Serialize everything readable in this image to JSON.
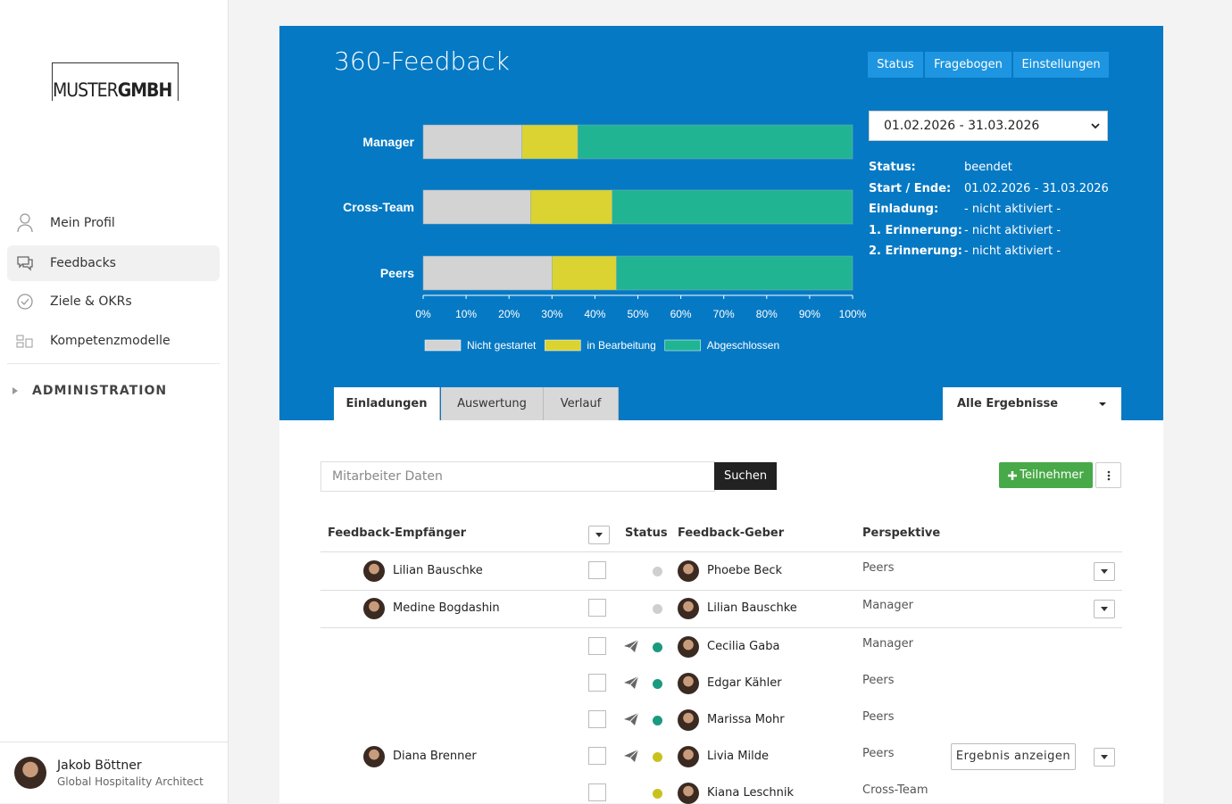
{
  "sidebar": {
    "logo": {
      "part1": "MUSTER",
      "part2": "GMBH"
    },
    "nav": [
      "Mein Profil",
      "Feedbacks",
      "Ziele & OKRs",
      "Kompetenzmodelle"
    ],
    "section": "ADMINISTRATION",
    "user": {
      "name": "Jakob Böttner",
      "role": "Global Hospitality Architect"
    }
  },
  "header": {
    "title": "360-Feedback",
    "buttons": [
      "Status",
      "Fragebogen",
      "Einstellungen"
    ],
    "period": "01.02.2026 - 31.03.2026",
    "info": [
      {
        "label": "Status:",
        "value": "beendet"
      },
      {
        "label": "Start / Ende:",
        "value": "01.02.2026 - 31.03.2026"
      },
      {
        "label": "Einladung:",
        "value": "- nicht aktiviert -"
      },
      {
        "label": "1. Erinnerung:",
        "value": "- nicht aktiviert -"
      },
      {
        "label": "2. Erinnerung:",
        "value": "- nicht aktiviert -"
      }
    ]
  },
  "chart_data": {
    "type": "stacked-bar-horizontal",
    "categories": [
      "Manager",
      "Cross-Team",
      "Peers"
    ],
    "series": [
      {
        "name": "Nicht gestartet",
        "color": "#d3d3d3",
        "values": [
          23,
          25,
          30
        ]
      },
      {
        "name": "in Bearbeitung",
        "color": "#dbd331",
        "values": [
          13,
          19,
          15
        ]
      },
      {
        "name": "Abgeschlossen",
        "color": "#20b493",
        "values": [
          64,
          56,
          55
        ]
      }
    ],
    "xlim": [
      0,
      100
    ],
    "xticks": [
      {
        "value": 0,
        "label": "0%"
      },
      {
        "value": 10,
        "label": "10%"
      },
      {
        "value": 20,
        "label": "20%"
      },
      {
        "value": 30,
        "label": "30%"
      },
      {
        "value": 40,
        "label": "40%"
      },
      {
        "value": 50,
        "label": "50%"
      },
      {
        "value": 60,
        "label": "60%"
      },
      {
        "value": 70,
        "label": "70%"
      },
      {
        "value": 80,
        "label": "80%"
      },
      {
        "value": 90,
        "label": "90%"
      },
      {
        "value": 100,
        "label": "100%"
      }
    ],
    "legend": "bottom"
  },
  "tabs": [
    "Einladungen",
    "Auswertung",
    "Verlauf"
  ],
  "filter": "Alle Ergebnisse",
  "search": {
    "placeholder": "Mitarbeiter Daten",
    "button": "Suchen"
  },
  "add_button": "Teilnehmer",
  "table": {
    "columns": [
      "Feedback-Empfänger",
      "Status",
      "Feedback-Geber",
      "Perspektive"
    ],
    "groups": [
      {
        "recipient": "Lilian Bauschke",
        "givers": [
          {
            "name": "Phoebe Beck",
            "perspective": "Peers",
            "status_color": "#cfcfcf",
            "sent": false
          }
        ]
      },
      {
        "recipient": "Medine Bogdashin",
        "givers": [
          {
            "name": "Lilian Bauschke",
            "perspective": "Manager",
            "status_color": "#cfcfcf",
            "sent": false
          }
        ]
      },
      {
        "recipient": "Diana Brenner",
        "result_button": "Ergebnis anzeigen",
        "givers": [
          {
            "name": "Cecilia Gaba",
            "perspective": "Manager",
            "status_color": "#1a9a7e",
            "sent": true
          },
          {
            "name": "Edgar Kähler",
            "perspective": "Peers",
            "status_color": "#1a9a7e",
            "sent": true
          },
          {
            "name": "Marissa Mohr",
            "perspective": "Peers",
            "status_color": "#1a9a7e",
            "sent": true
          },
          {
            "name": "Livia Milde",
            "perspective": "Peers",
            "status_color": "#c9c21e",
            "sent": true
          },
          {
            "name": "Kiana Leschnik",
            "perspective": "Cross-Team",
            "status_color": "#c9c21e",
            "sent": false
          }
        ]
      }
    ]
  }
}
